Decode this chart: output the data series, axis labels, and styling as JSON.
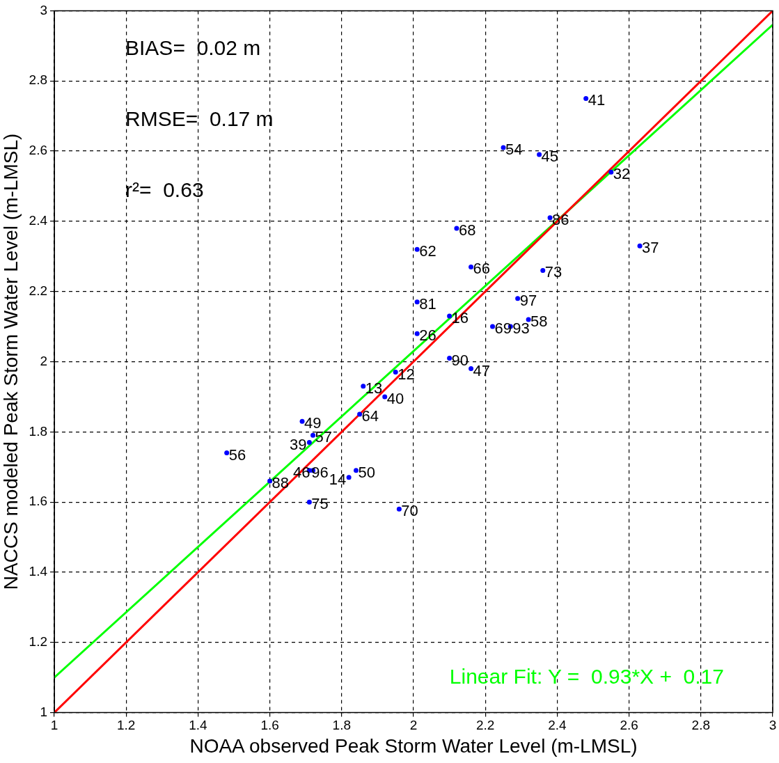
{
  "chart_data": {
    "type": "scatter",
    "xlabel": "NOAA observed Peak Storm Water Level (m-LMSL)",
    "ylabel": "NACCS modeled Peak Storm Water Level (m-LMSL)",
    "xlim": [
      1,
      3
    ],
    "ylim": [
      1,
      3
    ],
    "xticks": [
      1,
      1.2,
      1.4,
      1.6,
      1.8,
      2,
      2.2,
      2.4,
      2.6,
      2.8,
      3
    ],
    "yticks": [
      1,
      1.2,
      1.4,
      1.6,
      1.8,
      2,
      2.2,
      2.4,
      2.6,
      2.8,
      3
    ],
    "grid": true,
    "legend": false,
    "series": [
      {
        "marker": "circle",
        "color": "#0000ff",
        "x": [
          2.48,
          2.25,
          2.35,
          2.55,
          2.38,
          2.12,
          2.01,
          2.16,
          2.36,
          2.63,
          2.01,
          2.1,
          2.01,
          2.1,
          2.16,
          2.29,
          2.22,
          2.27,
          2.32,
          1.95,
          1.86,
          1.92,
          1.85,
          1.69,
          1.72,
          1.71,
          1.48,
          1.71,
          1.72,
          1.84,
          1.82,
          1.6,
          1.71,
          1.96
        ],
        "values": [
          2.75,
          2.61,
          2.59,
          2.54,
          2.41,
          2.38,
          2.32,
          2.27,
          2.26,
          2.33,
          2.17,
          2.13,
          2.08,
          2.01,
          1.98,
          2.18,
          2.1,
          2.1,
          2.12,
          1.97,
          1.93,
          1.9,
          1.85,
          1.83,
          1.79,
          1.77,
          1.74,
          1.69,
          1.69,
          1.69,
          1.67,
          1.66,
          1.6,
          1.58
        ]
      },
      {
        "type": "line",
        "color": "#ff0000",
        "x": [
          1,
          3
        ],
        "values": [
          1,
          3
        ]
      },
      {
        "type": "line",
        "color": "#00ff00",
        "x": [
          1,
          3
        ],
        "values": [
          1.1,
          2.96
        ]
      }
    ],
    "annotations": [
      "BIAS=  0.02 m",
      "RMSE=  0.17 m",
      "r²=  0.63",
      "Linear Fit: Y =  0.93*X +  0.17",
      {
        "text": "41",
        "x": 2.48,
        "y": 2.75
      },
      {
        "text": "54",
        "x": 2.25,
        "y": 2.61
      },
      {
        "text": "45",
        "x": 2.35,
        "y": 2.59
      },
      {
        "text": "32",
        "x": 2.55,
        "y": 2.54
      },
      {
        "text": "86",
        "x": 2.38,
        "y": 2.41
      },
      {
        "text": "68",
        "x": 2.12,
        "y": 2.38
      },
      {
        "text": "62",
        "x": 2.01,
        "y": 2.32
      },
      {
        "text": "66",
        "x": 2.16,
        "y": 2.27
      },
      {
        "text": "73",
        "x": 2.36,
        "y": 2.26
      },
      {
        "text": "37",
        "x": 2.63,
        "y": 2.33
      },
      {
        "text": "81",
        "x": 2.01,
        "y": 2.17
      },
      {
        "text": "16",
        "x": 2.1,
        "y": 2.13
      },
      {
        "text": "26",
        "x": 2.01,
        "y": 2.08
      },
      {
        "text": "90",
        "x": 2.1,
        "y": 2.01
      },
      {
        "text": "47",
        "x": 2.16,
        "y": 1.98
      },
      {
        "text": "97",
        "x": 2.29,
        "y": 2.18
      },
      {
        "text": "69",
        "x": 2.22,
        "y": 2.1
      },
      {
        "text": "93",
        "x": 2.27,
        "y": 2.1
      },
      {
        "text": "58",
        "x": 2.32,
        "y": 2.12
      },
      {
        "text": "12",
        "x": 1.95,
        "y": 1.97
      },
      {
        "text": "13",
        "x": 1.86,
        "y": 1.93
      },
      {
        "text": "40",
        "x": 1.92,
        "y": 1.9
      },
      {
        "text": "64",
        "x": 1.85,
        "y": 1.85
      },
      {
        "text": "49",
        "x": 1.69,
        "y": 1.83
      },
      {
        "text": "57",
        "x": 1.72,
        "y": 1.79
      },
      {
        "text": "39",
        "x": 1.71,
        "y": 1.77
      },
      {
        "text": "56",
        "x": 1.48,
        "y": 1.74
      },
      {
        "text": "96",
        "x": 1.71,
        "y": 1.69
      },
      {
        "text": "46",
        "x": 1.72,
        "y": 1.69
      },
      {
        "text": "50",
        "x": 1.84,
        "y": 1.69
      },
      {
        "text": "14",
        "x": 1.82,
        "y": 1.67
      },
      {
        "text": "88",
        "x": 1.6,
        "y": 1.66
      },
      {
        "text": "75",
        "x": 1.71,
        "y": 1.6
      },
      {
        "text": "70",
        "x": 1.96,
        "y": 1.58
      }
    ]
  }
}
